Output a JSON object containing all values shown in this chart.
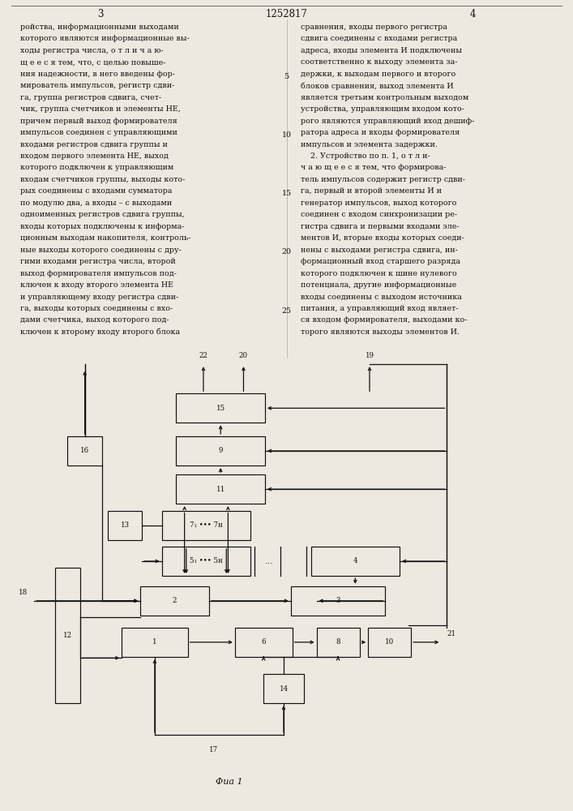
{
  "bg_color": "#ede9e0",
  "text_color": "#111111",
  "box_color": "#111111",
  "page_num_left": "3",
  "page_num_center": "1252817",
  "page_num_right": "4",
  "fig_caption": "Фua 1",
  "left_col": [
    "ройства, информационными выходами",
    "которого являются информационные вы-",
    "ходы регистра числа, о т л и ч а ю-",
    "щ е е с я тем, что, с целью повыше-",
    "ния надежности, в него введены фор-",
    "мирователь импульсов, регистр сдви-",
    "га, группа регистров сдвига, счет-",
    "чик, группа счетчиков и элементы НЕ,",
    "причем первый выход формирователя",
    "импульсов соединен с управляющими",
    "входами регистров сдвига группы и",
    "входом первого элемента НЕ, выход",
    "которого подключен к управляющим",
    "входам счетчиков группы, выходы кото-",
    "рых соединены с входами сумматора",
    "по модулю два, а входы – с выходами",
    "одноименных регистров сдвига группы,",
    "входы которых подключены к информа-",
    "ционным выходам накопителя, контроль-",
    "ные выходы которого соединены с дру-",
    "гими входами регистра числа, второй",
    "выход формирователя импульсов под-",
    "ключен к входу второго элемента НЕ",
    "и управляющему входу регистра сдви-",
    "га, выходы которых соединены с вхо-",
    "дами счетчика, выход которого под-",
    "ключен к второму входу второго блока"
  ],
  "right_col": [
    "сравнения, входы первого регистра",
    "сдвига соединены с входами регистра",
    "адреса, входы элемента И подключены",
    "соответственно к выходу элемента за-",
    "держки, к выходам первого и второго",
    "блоков сравнения, выход элемента И",
    "является третьим контрольным выходом",
    "устройства, управляющим входом кото-",
    "рого являются управляющий вход дешиф-",
    "ратора адреса и входы формирователя",
    "импульсов и элемента задержки.",
    "    2. Устройство по п. 1, о т л и-",
    "ч а ю щ е е с я тем, что формирова-",
    "тель импульсов содержит регистр сдви-",
    "га, первый и второй элементы И и",
    "генератор импульсов, выход которого",
    "соединен с входом синхронизации ре-",
    "гистра сдвига и первыми входами эле-",
    "ментов И, вторые входы которых соеди-",
    "нены с выходами регистра сдвига, ин-",
    "формационный вход старшего разряда",
    "которого подключен к шине нулевого",
    "потенциала, другие информационные",
    "входы соединены с выходом источника",
    "питания, а управляющий вход являет-",
    "ся входом формирователя, выходами ко-",
    "торого являются выходы элементов И."
  ]
}
